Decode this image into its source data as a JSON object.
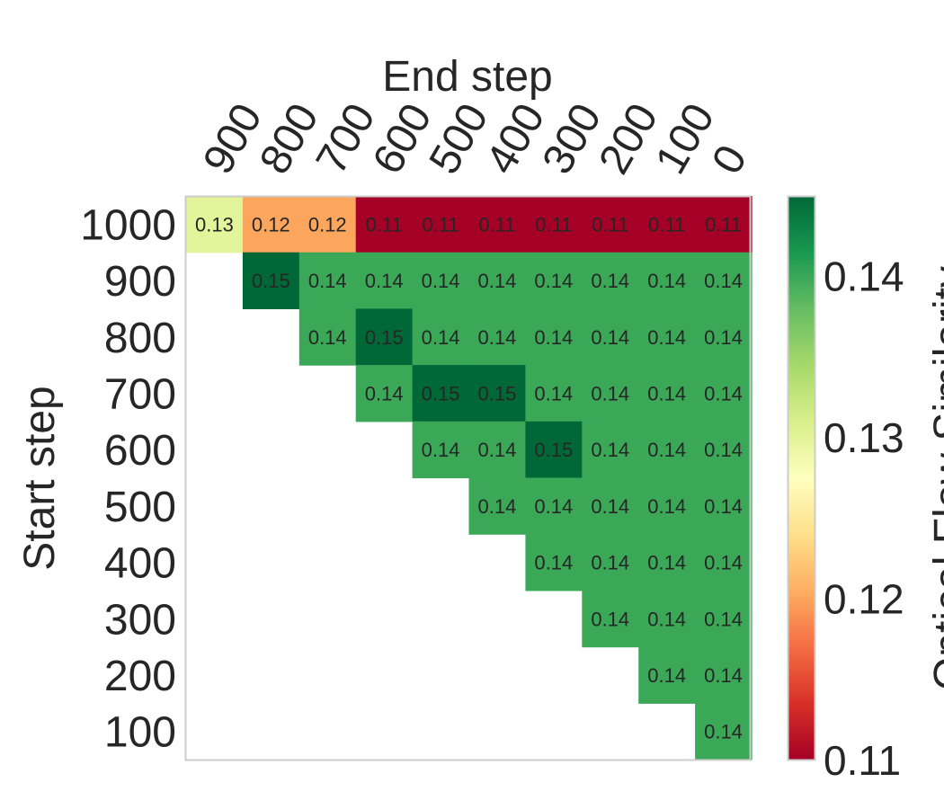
{
  "colors": {
    "colormap": [
      "#a50026",
      "#d73027",
      "#f46d43",
      "#fdae61",
      "#fee08b",
      "#ffffbf",
      "#d9ef8b",
      "#a6d96a",
      "#66bd63",
      "#1a9850",
      "#006837"
    ],
    "frame": "#cccccc",
    "text": "#262626"
  },
  "chart_data": {
    "type": "heatmap",
    "title": "",
    "xlabel": "End step",
    "ylabel": "Start step",
    "x_categories": [
      "900",
      "800",
      "700",
      "600",
      "500",
      "400",
      "300",
      "200",
      "100",
      "0"
    ],
    "y_categories": [
      "1000",
      "900",
      "800",
      "700",
      "600",
      "500",
      "400",
      "300",
      "200",
      "100"
    ],
    "values": [
      [
        0.13,
        0.12,
        0.12,
        0.11,
        0.11,
        0.11,
        0.11,
        0.11,
        0.11,
        0.11
      ],
      [
        null,
        0.15,
        0.14,
        0.14,
        0.14,
        0.14,
        0.14,
        0.14,
        0.14,
        0.14
      ],
      [
        null,
        null,
        0.14,
        0.15,
        0.14,
        0.14,
        0.14,
        0.14,
        0.14,
        0.14
      ],
      [
        null,
        null,
        null,
        0.14,
        0.15,
        0.15,
        0.14,
        0.14,
        0.14,
        0.14
      ],
      [
        null,
        null,
        null,
        null,
        0.14,
        0.14,
        0.15,
        0.14,
        0.14,
        0.14
      ],
      [
        null,
        null,
        null,
        null,
        null,
        0.14,
        0.14,
        0.14,
        0.14,
        0.14
      ],
      [
        null,
        null,
        null,
        null,
        null,
        null,
        0.14,
        0.14,
        0.14,
        0.14
      ],
      [
        null,
        null,
        null,
        null,
        null,
        null,
        null,
        0.14,
        0.14,
        0.14
      ],
      [
        null,
        null,
        null,
        null,
        null,
        null,
        null,
        null,
        0.14,
        0.14
      ],
      [
        null,
        null,
        null,
        null,
        null,
        null,
        null,
        null,
        null,
        0.14
      ]
    ],
    "colorbar": {
      "label": "Optical Flow Similarity",
      "range": [
        0.11,
        0.145
      ],
      "ticks": [
        0.11,
        0.12,
        0.13,
        0.14
      ]
    },
    "grid": false,
    "legend": "colorbar-right"
  }
}
